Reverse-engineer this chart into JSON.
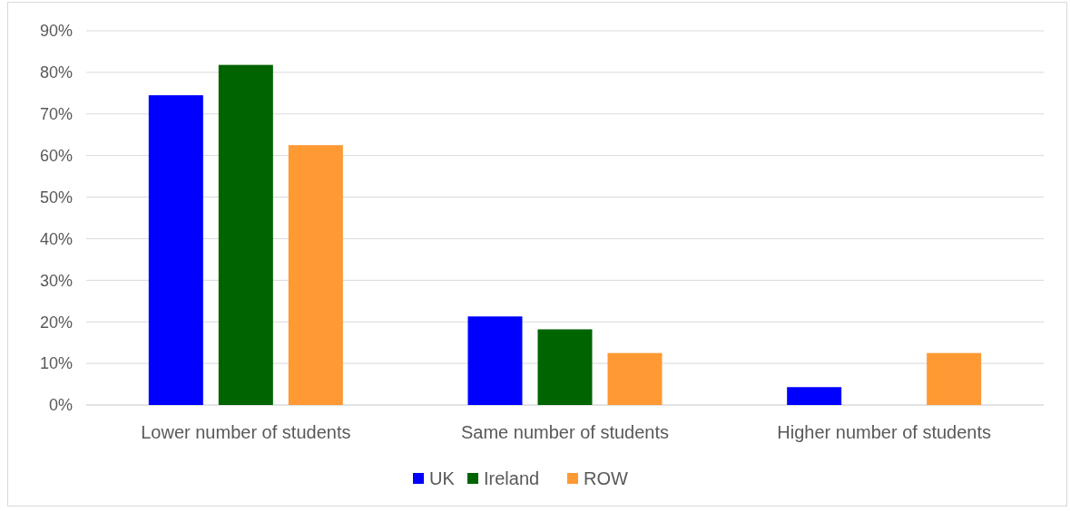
{
  "chart_data": {
    "type": "bar",
    "categories": [
      "Lower number of students",
      "Same number of students",
      "Higher number of students"
    ],
    "series": [
      {
        "name": "UK",
        "color": "#0000ff",
        "values": [
          74.5,
          21.3,
          4.3
        ]
      },
      {
        "name": "Ireland",
        "color": "#006400",
        "values": [
          81.8,
          18.2,
          0
        ]
      },
      {
        "name": "ROW",
        "color": "#ff9933",
        "values": [
          62.5,
          12.5,
          12.5
        ]
      }
    ],
    "ylim": [
      0,
      90
    ],
    "yticks": [
      {
        "value": 0,
        "label": "0%"
      },
      {
        "value": 10,
        "label": "10%"
      },
      {
        "value": 20,
        "label": "20%"
      },
      {
        "value": 30,
        "label": "30%"
      },
      {
        "value": 40,
        "label": "40%"
      },
      {
        "value": 50,
        "label": "50%"
      },
      {
        "value": 60,
        "label": "60%"
      },
      {
        "value": 70,
        "label": "70%"
      },
      {
        "value": 80,
        "label": "80%"
      },
      {
        "value": 90,
        "label": "90%"
      }
    ],
    "grid": "y",
    "legend": "bottom"
  }
}
